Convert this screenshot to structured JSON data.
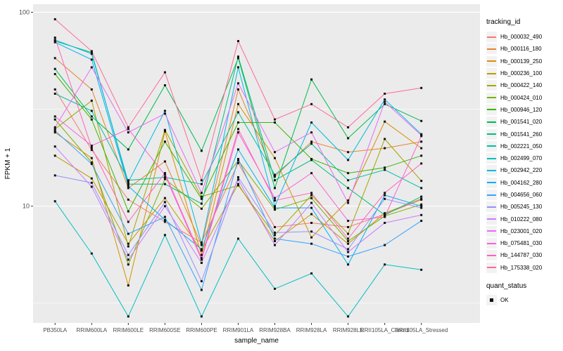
{
  "chart_data": {
    "type": "line",
    "title": "",
    "xlabel": "sample_name",
    "ylabel": "FPKM + 1",
    "y_scale": "log10",
    "ylim": [
      2.5,
      110
    ],
    "yticks": [
      10,
      100
    ],
    "y_minor_ticks": [
      3.162,
      31.62
    ],
    "grid": true,
    "legend_position": "right",
    "point_shape": "square",
    "point_color": "#111111",
    "categories": [
      "PB350LA",
      "RRIM600LA",
      "RRIM600LE",
      "RRIM600SE",
      "RRIM600PE",
      "RRIM901LA",
      "RRIM928BA",
      "RRIM928LA",
      "RRIM928LE",
      "RRII105LA_Control",
      "RRII105LA_Stressed"
    ],
    "series": [
      {
        "name": "Hb_000032_490",
        "color": "#F8766D",
        "values": [
          40,
          19.5,
          10.8,
          8.3,
          6.5,
          16.7,
          7.8,
          8.2,
          7.8,
          9.1,
          10.8
        ]
      },
      {
        "name": "Hb_000116_180",
        "color": "#EA8331",
        "values": [
          58,
          40,
          12.4,
          17,
          6.3,
          40,
          14.2,
          21.5,
          19,
          19.9,
          21.5
        ]
      },
      {
        "name": "Hb_000139_250",
        "color": "#D89000",
        "values": [
          24,
          17.7,
          3.9,
          24.3,
          5.6,
          33.6,
          17.7,
          6.9,
          10.7,
          27.3,
          19.9
        ]
      },
      {
        "name": "Hb_000236_100",
        "color": "#C09B00",
        "values": [
          18.2,
          13.9,
          6.4,
          11,
          5.9,
          13,
          6.6,
          9.1,
          6.4,
          9.2,
          10.9
        ]
      },
      {
        "name": "Hb_000422_140",
        "color": "#A3A500",
        "values": [
          25,
          35,
          6.2,
          24.7,
          11.2,
          12.8,
          7.1,
          11.4,
          7.2,
          22.2,
          13.5
        ]
      },
      {
        "name": "Hb_000424_010",
        "color": "#7CAE00",
        "values": [
          28,
          16.8,
          5,
          13.8,
          9.7,
          17.2,
          9.6,
          11,
          6.6,
          8.9,
          10.2
        ]
      },
      {
        "name": "Hb_000946_120",
        "color": "#39B600",
        "values": [
          48,
          28,
          9.4,
          21.5,
          10.9,
          27,
          27,
          17.5,
          14.8,
          15.8,
          18.2
        ]
      },
      {
        "name": "Hb_001541_020",
        "color": "#00BB4E",
        "values": [
          51,
          29,
          19.6,
          42,
          19.3,
          58,
          12.4,
          45,
          22.4,
          33.6,
          27.5
        ]
      },
      {
        "name": "Hb_001541_260",
        "color": "#00BF7D",
        "values": [
          71,
          62,
          13,
          13,
          10.3,
          59,
          13.6,
          17.3,
          12.4,
          9,
          11.2
        ]
      },
      {
        "name": "Hb_002221_050",
        "color": "#00C1A3",
        "values": [
          38,
          31,
          13.6,
          14.1,
          13,
          30.5,
          14.5,
          21,
          13.6,
          15.4,
          12.4
        ]
      },
      {
        "name": "Hb_002499_070",
        "color": "#00BFC4",
        "values": [
          10.6,
          5.7,
          2.7,
          7.1,
          2.7,
          6.8,
          3.75,
          4.5,
          2.7,
          5,
          4.7
        ]
      },
      {
        "name": "Hb_002942_220",
        "color": "#00BAE0",
        "values": [
          72,
          61,
          13.3,
          31,
          6.4,
          52,
          10,
          27,
          17.3,
          35.5,
          23.5
        ]
      },
      {
        "name": "Hb_004162_280",
        "color": "#00B0F6",
        "values": [
          70,
          57,
          12.7,
          8.5,
          6,
          19.6,
          9.8,
          9.8,
          5,
          11.4,
          10
        ]
      },
      {
        "name": "Hb_004656_060",
        "color": "#35A2FF",
        "values": [
          24.5,
          16.5,
          7.2,
          8.8,
          3.7,
          17.5,
          6.8,
          6.4,
          5.5,
          6.3,
          8.4
        ]
      },
      {
        "name": "Hb_005245_130",
        "color": "#9590FF",
        "values": [
          14.4,
          13.2,
          5.6,
          10.5,
          4.1,
          14.1,
          7.3,
          7.4,
          6,
          10.9,
          9.8
        ]
      },
      {
        "name": "Hb_010222_080",
        "color": "#C77CFF",
        "values": [
          20.3,
          12.6,
          5.3,
          10,
          5.1,
          13.7,
          6.3,
          10.4,
          5.8,
          8.2,
          9
        ]
      },
      {
        "name": "Hb_023001_020",
        "color": "#E76BF3",
        "values": [
          25.5,
          52,
          24,
          30,
          11.7,
          43,
          19,
          24,
          10.4,
          34.5,
          23.2
        ]
      },
      {
        "name": "Hb_075481_030",
        "color": "#FA62DB",
        "values": [
          29,
          20.5,
          25,
          14.5,
          5.3,
          24,
          11,
          14.8,
          8.4,
          8.8,
          23
        ]
      },
      {
        "name": "Hb_144787_030",
        "color": "#FF62BC",
        "values": [
          74,
          20,
          8.3,
          14.8,
          5.4,
          25,
          10.7,
          11.7,
          6.8,
          11.7,
          16.6
        ]
      },
      {
        "name": "Hb_175338_020",
        "color": "#FF6A98",
        "values": [
          92,
          63,
          25.5,
          49,
          13.6,
          71,
          28,
          33.6,
          25.5,
          38,
          40.7
        ]
      }
    ]
  },
  "legend": {
    "tracking_title": "tracking_id",
    "quant_title": "quant_status",
    "quant_items": [
      {
        "label": "OK"
      }
    ]
  },
  "colors": {
    "panel_bg": "#EBEBEB",
    "grid": "#FFFFFF",
    "key_bg": "#F2F2F2",
    "tick_label": "#4D4D4D",
    "tick_mark": "#333333",
    "axis_title": "#000000"
  }
}
